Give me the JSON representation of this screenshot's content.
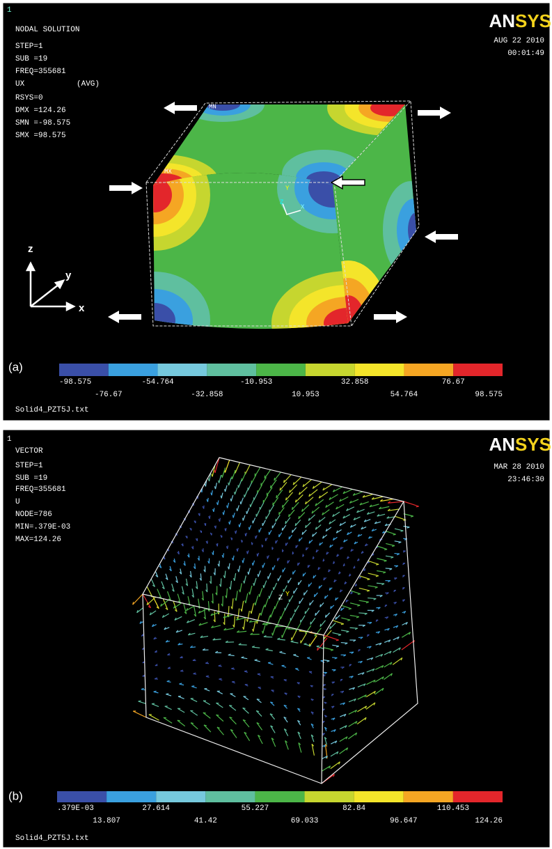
{
  "panel_a": {
    "label": "(a)",
    "window_number": "1",
    "logo": [
      "AN",
      "SYS"
    ],
    "info": [
      "NODAL SOLUTION",
      "STEP=1",
      "SUB =19",
      "FREQ=355681",
      "UX",
      "(AVG)",
      "RSYS=0",
      "DMX =124.26",
      "SMN =-98.575",
      "SMX =98.575"
    ],
    "date": "AUG 22 2010",
    "time": "00:01:49",
    "markers": [
      "MN",
      "MX"
    ],
    "triad": [
      "z",
      "y",
      "x"
    ],
    "origin_triad": [
      "Y",
      "Z",
      "X"
    ],
    "legend": {
      "colors": [
        "#3a4fa8",
        "#3aa0df",
        "#76c9dd",
        "#5fbf9f",
        "#4cb648",
        "#c6d62f",
        "#f4e52a",
        "#f5a623",
        "#e3262b"
      ],
      "labels": [
        "-98.575",
        "-76.67",
        "-54.764",
        "-32.858",
        "-10.953",
        "10.953",
        "32.858",
        "54.764",
        "76.67",
        "98.575"
      ]
    },
    "file": "Solid4_PZT5J.txt"
  },
  "panel_b": {
    "label": "(b)",
    "window_number": "1",
    "logo": [
      "AN",
      "SYS"
    ],
    "info": [
      "VECTOR",
      "STEP=1",
      "SUB =19",
      "FREQ=355681",
      "U",
      "NODE=786",
      "MIN=.379E-03",
      "MAX=124.26"
    ],
    "date": "MAR 28 2010",
    "time": "23:46:30",
    "origin_triad": [
      "Z",
      "Y"
    ],
    "legend": {
      "colors": [
        "#3a4fa8",
        "#3aa0df",
        "#76c9dd",
        "#5fbf9f",
        "#4cb648",
        "#c6d62f",
        "#f4e52a",
        "#f5a623",
        "#e3262b"
      ],
      "labels": [
        ".379E-03",
        "13.807",
        "27.614",
        "41.42",
        "55.227",
        "69.033",
        "82.84",
        "96.647",
        "110.453",
        "124.26"
      ]
    },
    "file": "Solid4_PZT5J.txt"
  }
}
